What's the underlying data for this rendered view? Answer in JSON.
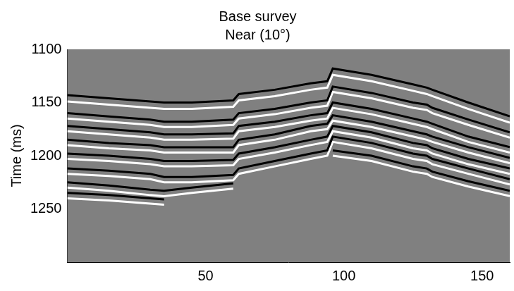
{
  "chart_data": {
    "type": "line",
    "title": "Base survey",
    "subtitle": "Near (10°)",
    "y_label": "Time (ms)",
    "x": [
      0,
      15,
      30,
      35,
      45,
      60,
      62,
      75,
      88,
      94,
      96,
      110,
      125,
      130,
      132,
      145,
      160
    ],
    "series": [
      {
        "color": "#000000",
        "values": [
          1143,
          1146,
          1149,
          1150,
          1150,
          1148,
          1142,
          1138,
          1132,
          1130,
          1118,
          1124,
          1133,
          1136,
          1138,
          1150,
          1163
        ]
      },
      {
        "color": "#ffffff",
        "values": [
          1149,
          1152,
          1155,
          1156,
          1156,
          1154,
          1148,
          1144,
          1138,
          1136,
          1124,
          1130,
          1139,
          1142,
          1144,
          1156,
          1169
        ]
      },
      {
        "color": "#000000",
        "values": [
          1160,
          1163,
          1166,
          1168,
          1168,
          1166,
          1160,
          1156,
          1150,
          1148,
          1135,
          1141,
          1150,
          1152,
          1155,
          1166,
          1178
        ]
      },
      {
        "color": "#ffffff",
        "values": [
          1165,
          1168,
          1171,
          1173,
          1173,
          1171,
          1165,
          1161,
          1155,
          1153,
          1140,
          1146,
          1155,
          1157,
          1160,
          1171,
          1183
        ]
      },
      {
        "color": "#000000",
        "values": [
          1172,
          1175,
          1178,
          1180,
          1180,
          1179,
          1172,
          1168,
          1162,
          1160,
          1150,
          1156,
          1165,
          1168,
          1170,
          1182,
          1192
        ]
      },
      {
        "color": "#ffffff",
        "values": [
          1177,
          1180,
          1183,
          1185,
          1185,
          1184,
          1177,
          1173,
          1167,
          1165,
          1155,
          1161,
          1170,
          1173,
          1175,
          1187,
          1197
        ]
      },
      {
        "color": "#000000",
        "values": [
          1185,
          1188,
          1190,
          1192,
          1192,
          1192,
          1185,
          1180,
          1172,
          1170,
          1162,
          1168,
          1177,
          1180,
          1182,
          1192,
          1202
        ]
      },
      {
        "color": "#ffffff",
        "values": [
          1190,
          1193,
          1195,
          1197,
          1197,
          1197,
          1190,
          1185,
          1177,
          1175,
          1167,
          1173,
          1182,
          1185,
          1187,
          1197,
          1207
        ]
      },
      {
        "color": "#000000",
        "values": [
          1198,
          1200,
          1203,
          1205,
          1205,
          1204,
          1198,
          1192,
          1185,
          1182,
          1172,
          1178,
          1188,
          1190,
          1193,
          1203,
          1212
        ]
      },
      {
        "color": "#ffffff",
        "values": [
          1203,
          1205,
          1208,
          1210,
          1210,
          1209,
          1203,
          1197,
          1190,
          1187,
          1177,
          1183,
          1193,
          1195,
          1198,
          1208,
          1217
        ]
      },
      {
        "color": "#000000",
        "values": [
          1212,
          1214,
          1217,
          1220,
          1220,
          1218,
          1212,
          1205,
          1198,
          1195,
          1182,
          1188,
          1198,
          1200,
          1203,
          1212,
          1222
        ]
      },
      {
        "color": "#ffffff",
        "values": [
          1217,
          1219,
          1222,
          1225,
          1225,
          1223,
          1217,
          1210,
          1203,
          1200,
          1187,
          1193,
          1203,
          1205,
          1208,
          1217,
          1227
        ]
      },
      {
        "color": "#000000",
        "values": [
          1225,
          1228,
          1232,
          1233,
          1230,
          1226,
          null,
          null,
          null,
          null,
          1195,
          1200,
          1210,
          1212,
          1215,
          1224,
          1233
        ]
      },
      {
        "color": "#ffffff",
        "values": [
          1230,
          1233,
          1237,
          1238,
          1235,
          1231,
          null,
          null,
          null,
          null,
          1200,
          1205,
          1215,
          1217,
          1220,
          1229,
          1238
        ]
      },
      {
        "color": "#000000",
        "values": [
          1235,
          1237,
          1240,
          1241,
          null,
          null,
          null,
          null,
          null,
          null,
          null,
          null,
          null,
          null,
          null,
          null,
          null
        ]
      },
      {
        "color": "#ffffff",
        "values": [
          1240,
          1242,
          1245,
          1246,
          null,
          null,
          null,
          null,
          null,
          null,
          null,
          null,
          null,
          null,
          null,
          null,
          null
        ]
      }
    ],
    "xlim": [
      0,
      160
    ],
    "xticks": [
      50,
      100,
      150
    ],
    "ylim": [
      1100,
      1300
    ],
    "yticks": [
      1100,
      1150,
      1200,
      1250
    ],
    "grid": false
  }
}
